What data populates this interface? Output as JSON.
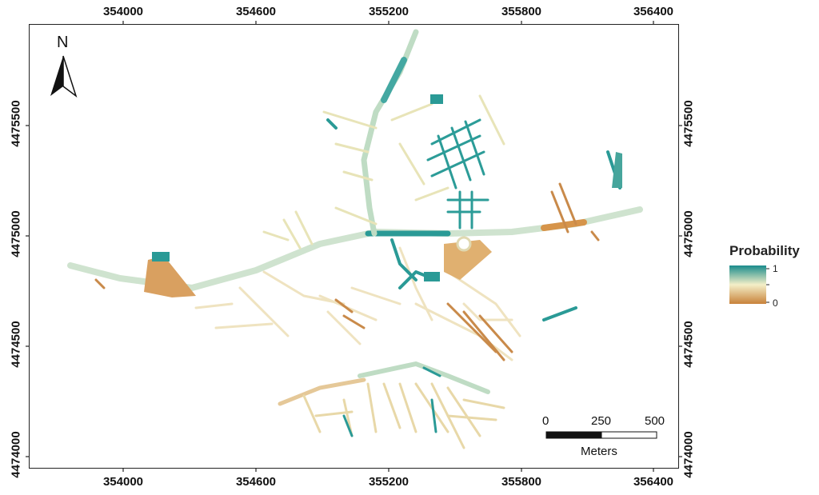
{
  "map": {
    "x_axis_ticks": [
      "354000",
      "354600",
      "355200",
      "355800",
      "356400"
    ],
    "y_axis_ticks": [
      "4475500",
      "4475000",
      "4474500",
      "4474000"
    ],
    "north_arrow_label": "N"
  },
  "legend": {
    "title": "Probability",
    "high_label": "1",
    "low_label": "0",
    "colors": [
      "#1a8c8c",
      "#f4efc8",
      "#c8823a"
    ]
  },
  "scale_bar": {
    "labels": [
      "0",
      "250",
      "500"
    ],
    "unit": "Meters"
  }
}
